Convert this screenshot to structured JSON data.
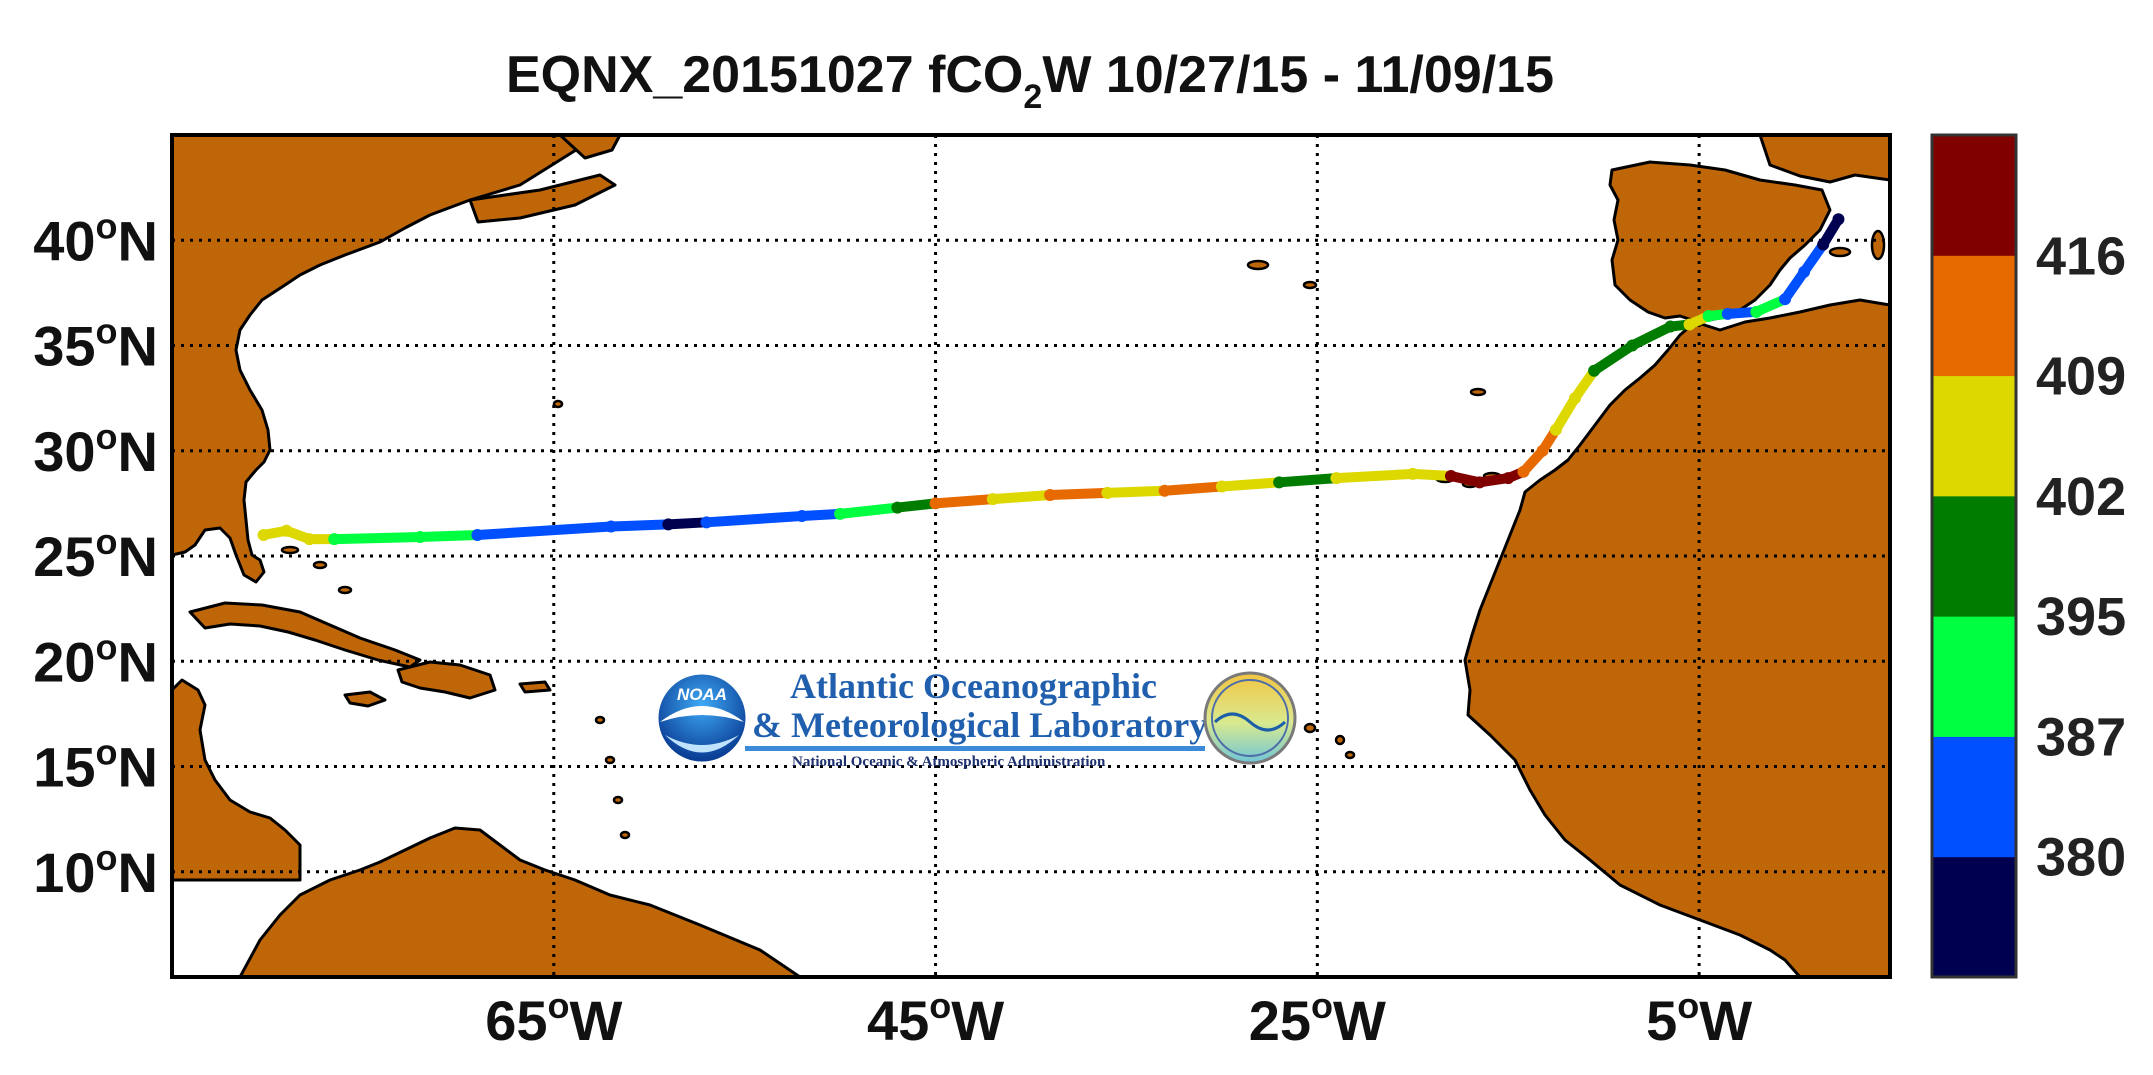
{
  "title": {
    "main": "EQNX_20151027 fCO",
    "subscript": "2",
    "tail": "W 10/27/15 - 11/09/15"
  },
  "map": {
    "lon_range": [
      -85,
      5
    ],
    "lat_range": [
      5,
      45
    ],
    "ocean_color": "#ffffff",
    "land_color": "#bf6608",
    "coast_color": "#000000",
    "grid": true,
    "grid_style": "dotted"
  },
  "axes": {
    "x_ticks": [
      {
        "value": -65,
        "num": "65",
        "deg": "o",
        "hemi": "W"
      },
      {
        "value": -45,
        "num": "45",
        "deg": "o",
        "hemi": "W"
      },
      {
        "value": -25,
        "num": "25",
        "deg": "o",
        "hemi": "W"
      },
      {
        "value": -5,
        "num": "5",
        "deg": "o",
        "hemi": "W"
      }
    ],
    "y_ticks": [
      {
        "value": 40,
        "num": "40",
        "deg": "o",
        "hemi": "N"
      },
      {
        "value": 35,
        "num": "35",
        "deg": "o",
        "hemi": "N"
      },
      {
        "value": 30,
        "num": "30",
        "deg": "o",
        "hemi": "N"
      },
      {
        "value": 25,
        "num": "25",
        "deg": "o",
        "hemi": "N"
      },
      {
        "value": 20,
        "num": "20",
        "deg": "o",
        "hemi": "N"
      },
      {
        "value": 15,
        "num": "15",
        "deg": "o",
        "hemi": "N"
      },
      {
        "value": 10,
        "num": "10",
        "deg": "o",
        "hemi": "N"
      }
    ]
  },
  "colorbar": {
    "bins": [
      {
        "color": "#000050"
      },
      {
        "color": "#0050ff"
      },
      {
        "color": "#00ff40"
      },
      {
        "color": "#007d00"
      },
      {
        "color": "#dcd800"
      },
      {
        "color": "#e66a00"
      },
      {
        "color": "#800000"
      }
    ],
    "labels": [
      "380",
      "387",
      "395",
      "402",
      "409",
      "416"
    ]
  },
  "track": [
    {
      "lon": -80.2,
      "lat": 26.0,
      "c": 4
    },
    {
      "lon": -79.0,
      "lat": 26.2,
      "c": 4
    },
    {
      "lon": -77.8,
      "lat": 25.8,
      "c": 4
    },
    {
      "lon": -76.5,
      "lat": 25.8,
      "c": 2
    },
    {
      "lon": -72.0,
      "lat": 25.9,
      "c": 2
    },
    {
      "lon": -69.0,
      "lat": 26.0,
      "c": 1
    },
    {
      "lon": -62.0,
      "lat": 26.4,
      "c": 1
    },
    {
      "lon": -59.0,
      "lat": 26.5,
      "c": 0
    },
    {
      "lon": -57.0,
      "lat": 26.6,
      "c": 1
    },
    {
      "lon": -52.0,
      "lat": 26.9,
      "c": 1
    },
    {
      "lon": -50.0,
      "lat": 27.0,
      "c": 2
    },
    {
      "lon": -47.0,
      "lat": 27.3,
      "c": 3
    },
    {
      "lon": -45.0,
      "lat": 27.5,
      "c": 5
    },
    {
      "lon": -42.0,
      "lat": 27.7,
      "c": 4
    },
    {
      "lon": -39.0,
      "lat": 27.9,
      "c": 5
    },
    {
      "lon": -36.0,
      "lat": 28.0,
      "c": 4
    },
    {
      "lon": -33.0,
      "lat": 28.1,
      "c": 5
    },
    {
      "lon": -30.0,
      "lat": 28.3,
      "c": 4
    },
    {
      "lon": -27.0,
      "lat": 28.5,
      "c": 3
    },
    {
      "lon": -24.0,
      "lat": 28.7,
      "c": 4
    },
    {
      "lon": -20.0,
      "lat": 28.9,
      "c": 4
    },
    {
      "lon": -18.0,
      "lat": 28.8,
      "c": 6
    },
    {
      "lon": -16.5,
      "lat": 28.5,
      "c": 6
    },
    {
      "lon": -15.0,
      "lat": 28.7,
      "c": 6
    },
    {
      "lon": -14.2,
      "lat": 29.0,
      "c": 5
    },
    {
      "lon": -13.2,
      "lat": 30.0,
      "c": 5
    },
    {
      "lon": -12.5,
      "lat": 31.0,
      "c": 4
    },
    {
      "lon": -11.5,
      "lat": 32.5,
      "c": 4
    },
    {
      "lon": -10.5,
      "lat": 33.8,
      "c": 3
    },
    {
      "lon": -8.5,
      "lat": 35.0,
      "c": 3
    },
    {
      "lon": -6.5,
      "lat": 35.9,
      "c": 3
    },
    {
      "lon": -5.5,
      "lat": 36.0,
      "c": 4
    },
    {
      "lon": -4.5,
      "lat": 36.4,
      "c": 2
    },
    {
      "lon": -3.5,
      "lat": 36.5,
      "c": 1
    },
    {
      "lon": -2.0,
      "lat": 36.6,
      "c": 2
    },
    {
      "lon": -0.5,
      "lat": 37.2,
      "c": 1
    },
    {
      "lon": 0.5,
      "lat": 38.5,
      "c": 1
    },
    {
      "lon": 1.5,
      "lat": 39.8,
      "c": 0
    },
    {
      "lon": 2.3,
      "lat": 41.0,
      "c": 0
    }
  ],
  "logo": {
    "line1": "Atlantic Oceanographic",
    "line2": "& Meteorological Laboratory",
    "line3": "National Oceanic & Atmospheric Administration",
    "badge": "NOAA"
  }
}
